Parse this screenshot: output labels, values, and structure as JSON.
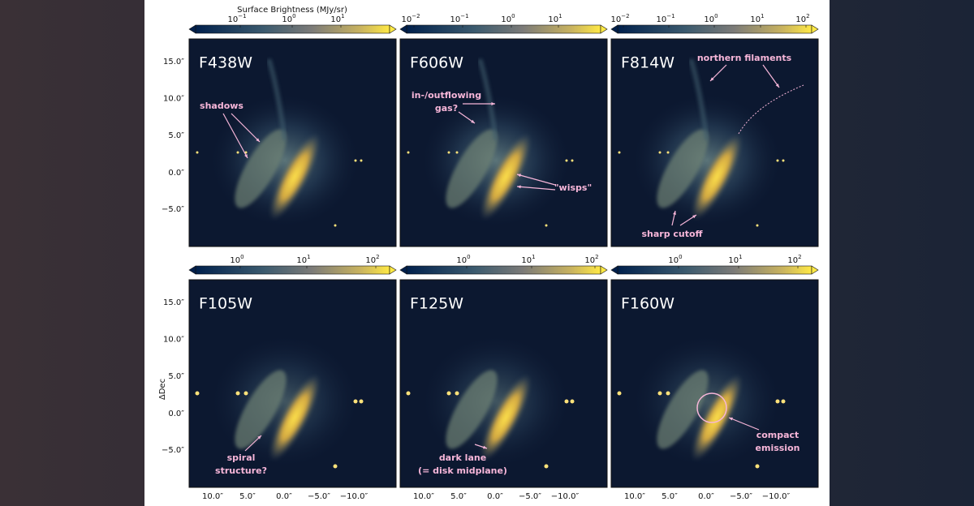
{
  "colorbar_title": "Surface Brightness (MJy/sr)",
  "y_axis_label": "ΔDec",
  "y_ticks": [
    "15.0″",
    "10.0″",
    "5.0″",
    "0.0″",
    "−5.0″"
  ],
  "x_ticks": [
    "10.0″",
    "5.0″",
    "0.0″",
    "−5.0″",
    "−10.0″"
  ],
  "panels": [
    {
      "label": "F438W",
      "colorbar_ticks": [
        {
          "base": "10",
          "exp": "−1"
        },
        {
          "base": "10",
          "exp": "0"
        },
        {
          "base": "10",
          "exp": "1"
        }
      ],
      "annotations": [
        [
          "shadows"
        ]
      ]
    },
    {
      "label": "F606W",
      "colorbar_ticks": [
        {
          "base": "10",
          "exp": "−2"
        },
        {
          "base": "10",
          "exp": "−1"
        },
        {
          "base": "10",
          "exp": "0"
        },
        {
          "base": "10",
          "exp": "1"
        }
      ],
      "annotations": [
        [
          "in-/outflowing",
          "gas?"
        ],
        [
          "\"wisps\""
        ]
      ]
    },
    {
      "label": "F814W",
      "colorbar_ticks": [
        {
          "base": "10",
          "exp": "−2"
        },
        {
          "base": "10",
          "exp": "−1"
        },
        {
          "base": "10",
          "exp": "0"
        },
        {
          "base": "10",
          "exp": "1"
        },
        {
          "base": "10",
          "exp": "2"
        }
      ],
      "annotations": [
        [
          "northern filaments"
        ],
        [
          "sharp cutoff"
        ]
      ]
    },
    {
      "label": "F105W",
      "colorbar_ticks": [
        {
          "base": "10",
          "exp": "0"
        },
        {
          "base": "10",
          "exp": "1"
        },
        {
          "base": "10",
          "exp": "2"
        }
      ],
      "annotations": [
        [
          "spiral",
          "structure?"
        ]
      ]
    },
    {
      "label": "F125W",
      "colorbar_ticks": [
        {
          "base": "10",
          "exp": "0"
        },
        {
          "base": "10",
          "exp": "1"
        },
        {
          "base": "10",
          "exp": "2"
        }
      ],
      "annotations": [
        [
          "dark lane",
          "(= disk midplane)"
        ]
      ]
    },
    {
      "label": "F160W",
      "colorbar_ticks": [
        {
          "base": "10",
          "exp": "0"
        },
        {
          "base": "10",
          "exp": "1"
        },
        {
          "base": "10",
          "exp": "2"
        }
      ],
      "annotations": [
        [
          "compact",
          "emission"
        ]
      ]
    }
  ]
}
